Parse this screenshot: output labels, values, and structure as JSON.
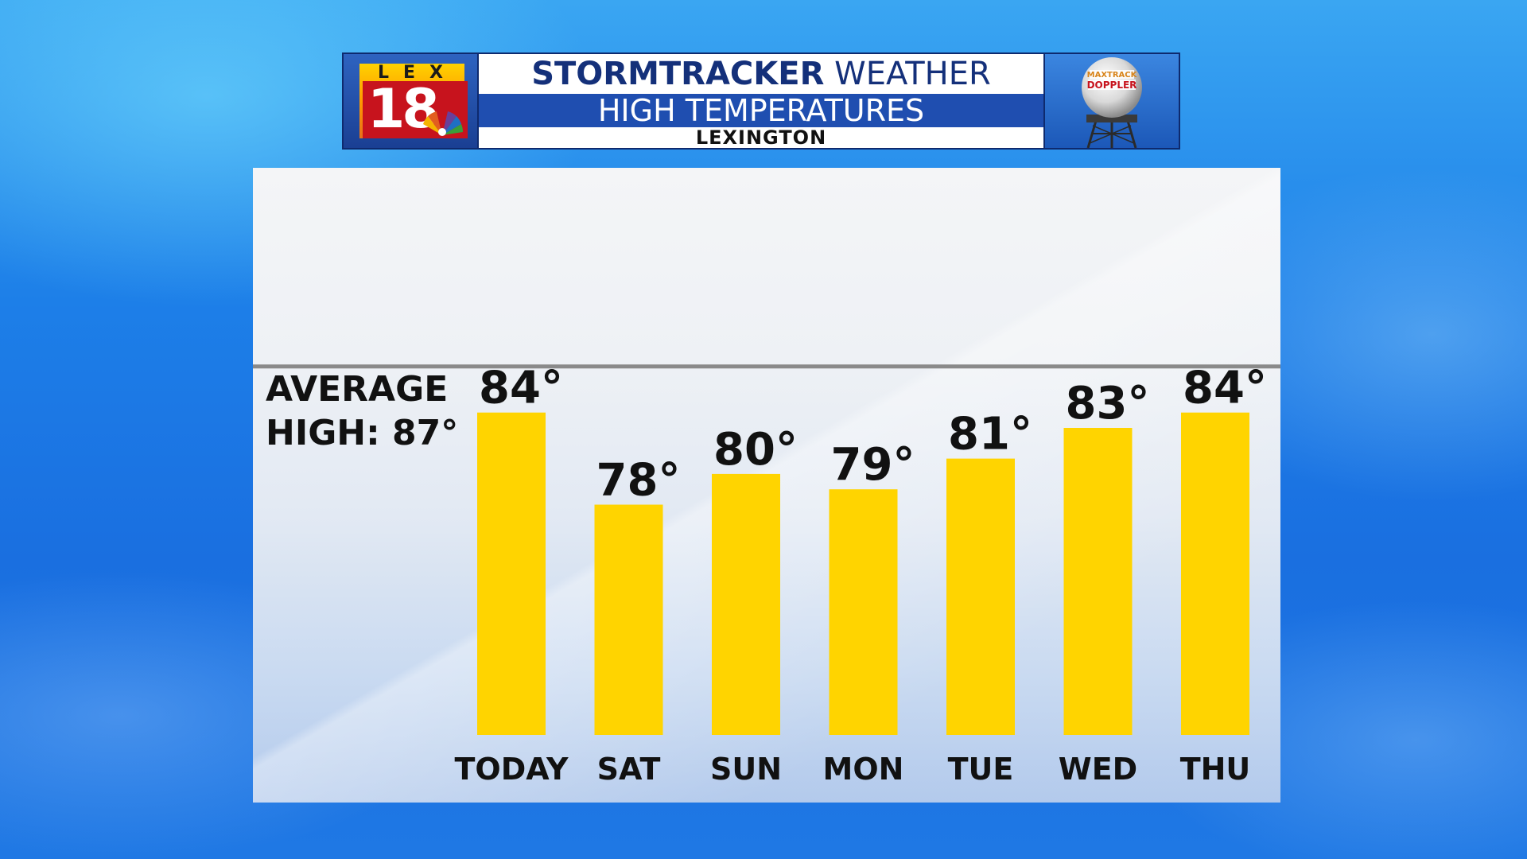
{
  "header": {
    "logo_letters": "LEX",
    "logo_number": "18",
    "title_bold": "STORMTRACKER",
    "title_rest": "WEATHER",
    "subtitle": "HIGH TEMPERATURES",
    "location": "LEXINGTON",
    "doppler_line1": "MAXTRACK",
    "doppler_line2": "DOPPLER"
  },
  "colors": {
    "bar": "#ffd400",
    "average_line": "#8a8a8a",
    "banner_blue": "#1f4eb0",
    "title_text": "#14307a"
  },
  "chart_data": {
    "type": "bar",
    "title": "HIGH TEMPERATURES",
    "categories": [
      "TODAY",
      "SAT",
      "SUN",
      "MON",
      "TUE",
      "WED",
      "THU"
    ],
    "values": [
      84,
      78,
      80,
      79,
      81,
      83,
      84
    ],
    "value_labels": [
      "84°",
      "78°",
      "80°",
      "79°",
      "81°",
      "83°",
      "84°"
    ],
    "reference_line": {
      "value": 87,
      "label_line1": "AVERAGE",
      "label_line2": "HIGH: 87°"
    },
    "ylim": [
      63,
      93
    ],
    "grid": false,
    "legend": "none"
  }
}
